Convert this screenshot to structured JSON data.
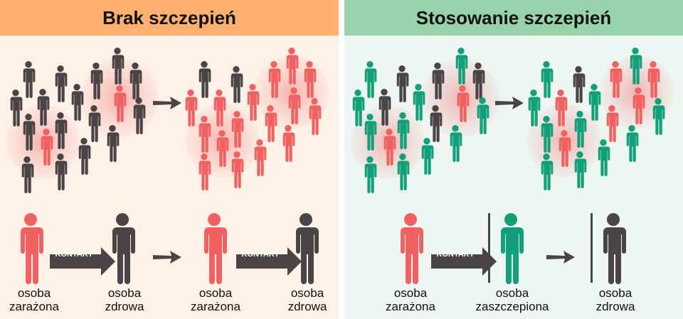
{
  "colors": {
    "infected": "#f06262",
    "healthy": "#4a4446",
    "vaccinated": "#12a07a",
    "header_left": "#fdb070",
    "header_right": "#98d2ab"
  },
  "left": {
    "title": "Brak szczepień",
    "contact_label": "KONTAKT",
    "labels": [
      {
        "line1": "osoba",
        "line2": "zarażona"
      },
      {
        "line1": "osoba",
        "line2": "zdrowa"
      },
      {
        "line1": "osoba",
        "line2": "zarażona"
      },
      {
        "line1": "osoba",
        "line2": "zdrowa"
      }
    ]
  },
  "right": {
    "title": "Stosowanie szczepień",
    "contact_label": "KONTAKT",
    "labels": [
      {
        "line1": "osoba",
        "line2": "zarażona"
      },
      {
        "line1": "osoba",
        "line2": "zaszczepiona"
      },
      {
        "line1": "osoba",
        "line2": "zdrowa"
      }
    ]
  }
}
